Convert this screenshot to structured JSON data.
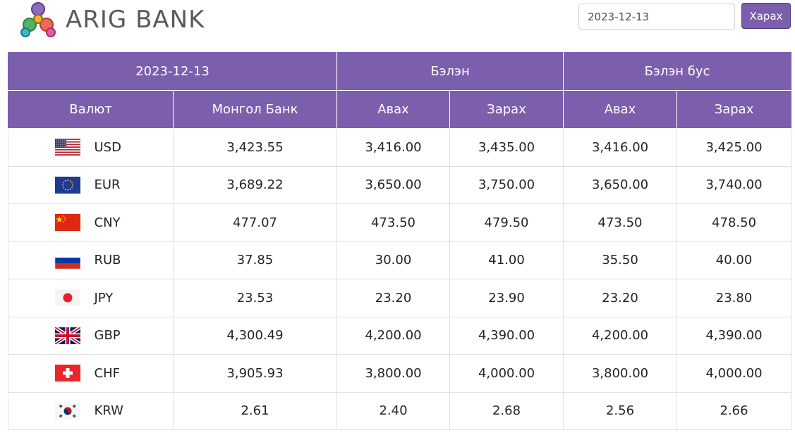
{
  "brand": {
    "name": "ARIG BANK"
  },
  "search": {
    "date_value": "2023-12-13",
    "view_button": "Харах"
  },
  "table": {
    "header_date": "2023-12-13",
    "group_cash": "Бэлэн",
    "group_noncash": "Бэлэн бус",
    "col_currency": "Валют",
    "col_mongolbank": "Монгол Банк",
    "col_cash_buy": "Авах",
    "col_cash_sell": "Зарах",
    "col_noncash_buy": "Авах",
    "col_noncash_sell": "Зарах",
    "rows": [
      {
        "flag": "us-flag-icon",
        "code": "USD",
        "mongolbank": "3,423.55",
        "cash_buy": "3,416.00",
        "cash_sell": "3,435.00",
        "noncash_buy": "3,416.00",
        "noncash_sell": "3,425.00"
      },
      {
        "flag": "eu-flag-icon",
        "code": "EUR",
        "mongolbank": "3,689.22",
        "cash_buy": "3,650.00",
        "cash_sell": "3,750.00",
        "noncash_buy": "3,650.00",
        "noncash_sell": "3,740.00"
      },
      {
        "flag": "cn-flag-icon",
        "code": "CNY",
        "mongolbank": "477.07",
        "cash_buy": "473.50",
        "cash_sell": "479.50",
        "noncash_buy": "473.50",
        "noncash_sell": "478.50"
      },
      {
        "flag": "ru-flag-icon",
        "code": "RUB",
        "mongolbank": "37.85",
        "cash_buy": "30.00",
        "cash_sell": "41.00",
        "noncash_buy": "35.50",
        "noncash_sell": "40.00"
      },
      {
        "flag": "jp-flag-icon",
        "code": "JPY",
        "mongolbank": "23.53",
        "cash_buy": "23.20",
        "cash_sell": "23.90",
        "noncash_buy": "23.20",
        "noncash_sell": "23.80"
      },
      {
        "flag": "gb-flag-icon",
        "code": "GBP",
        "mongolbank": "4,300.49",
        "cash_buy": "4,200.00",
        "cash_sell": "4,390.00",
        "noncash_buy": "4,200.00",
        "noncash_sell": "4,390.00"
      },
      {
        "flag": "ch-flag-icon",
        "code": "CHF",
        "mongolbank": "3,905.93",
        "cash_buy": "3,800.00",
        "cash_sell": "4,000.00",
        "noncash_buy": "3,800.00",
        "noncash_sell": "4,000.00"
      },
      {
        "flag": "kr-flag-icon",
        "code": "KRW",
        "mongolbank": "2.61",
        "cash_buy": "2.40",
        "cash_sell": "2.68",
        "noncash_buy": "2.56",
        "noncash_sell": "2.66"
      }
    ]
  },
  "colors": {
    "header_bg": "#7b5fad",
    "button_bg": "#7b5fad",
    "border": "#dee2e6"
  }
}
